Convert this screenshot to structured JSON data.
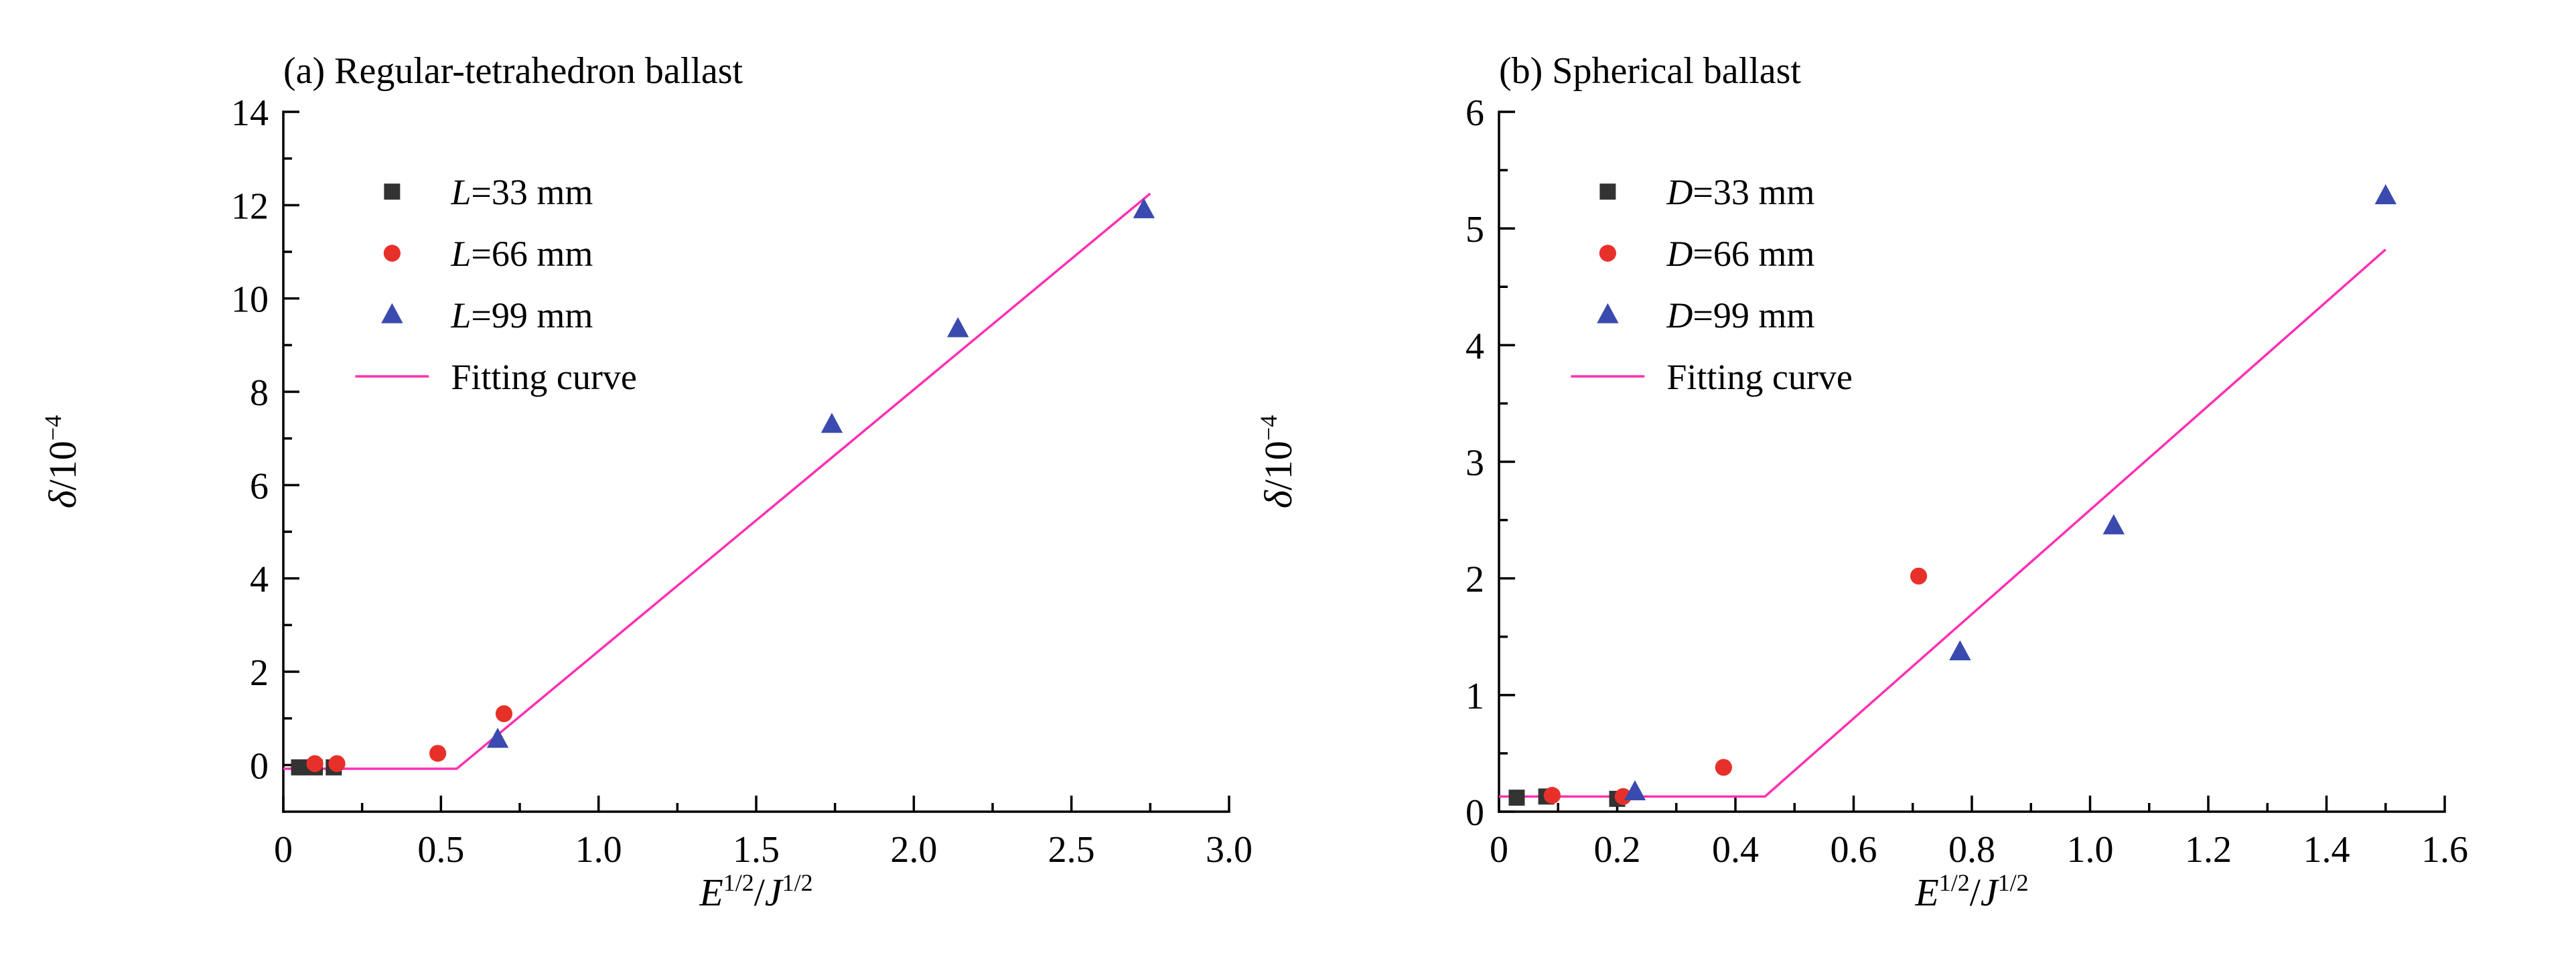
{
  "page": {
    "background": "#ffffff",
    "axis_color": "#000000",
    "text_color": "#000000"
  },
  "chart_data": [
    {
      "type": "scatter",
      "title": "(a) Regular-tetrahedron ballast",
      "xlabel": "E^1/2/J^1/2",
      "ylabel": "δ/10^−4",
      "xlabel_segments": [
        {
          "text": "E",
          "style": "italic"
        },
        {
          "text": "1/2",
          "style": "sup"
        },
        {
          "text": "/",
          "style": "normal"
        },
        {
          "text": "J",
          "style": "italic"
        },
        {
          "text": "1/2",
          "style": "sup"
        }
      ],
      "ylabel_segments": [
        {
          "text": "δ",
          "style": "italic"
        },
        {
          "text": "/10",
          "style": "normal"
        },
        {
          "text": "−4",
          "style": "sup"
        }
      ],
      "xlim": [
        0,
        3.0
      ],
      "ylim": [
        -1,
        14
      ],
      "xtick_labels": [
        "0",
        "0.5",
        "1.0",
        "1.5",
        "2.0",
        "2.5",
        "3.0"
      ],
      "ytick_labels": [
        "0",
        "2",
        "4",
        "6",
        "8",
        "10",
        "12",
        "14"
      ],
      "grid": false,
      "legend_position": "upper-left",
      "series": [
        {
          "name": "L=33 mm",
          "label_segments": [
            {
              "text": "L",
              "style": "italic"
            },
            {
              "text": "=33 mm",
              "style": "normal"
            }
          ],
          "marker": "square",
          "color": "#333333",
          "points": [
            [
              0.05,
              -0.05
            ],
            [
              0.1,
              -0.05
            ],
            [
              0.16,
              -0.05
            ]
          ]
        },
        {
          "name": "L=66 mm",
          "label_segments": [
            {
              "text": "L",
              "style": "italic"
            },
            {
              "text": "=66 mm",
              "style": "normal"
            }
          ],
          "marker": "circle",
          "color": "#e8302a",
          "points": [
            [
              0.1,
              0.03
            ],
            [
              0.17,
              0.03
            ],
            [
              0.49,
              0.25
            ],
            [
              0.7,
              1.1
            ]
          ]
        },
        {
          "name": "L=99 mm",
          "label_segments": [
            {
              "text": "L",
              "style": "italic"
            },
            {
              "text": "=99 mm",
              "style": "normal"
            }
          ],
          "marker": "triangle",
          "color": "#3a4aae",
          "points": [
            [
              0.68,
              0.55
            ],
            [
              1.74,
              7.3
            ],
            [
              2.14,
              9.35
            ],
            [
              2.73,
              11.9
            ]
          ]
        }
      ],
      "fit_curve": {
        "name": "Fitting curve",
        "label_segments": [
          {
            "text": "Fitting curve",
            "style": "normal"
          }
        ],
        "color": "#ff2fb4",
        "points": [
          [
            0,
            -0.08
          ],
          [
            0.55,
            -0.08
          ],
          [
            2.75,
            12.25
          ]
        ]
      }
    },
    {
      "type": "scatter",
      "title": "(b) Spherical ballast",
      "xlabel": "E^1/2/J^1/2",
      "ylabel": "δ/10^−4",
      "xlabel_segments": [
        {
          "text": "E",
          "style": "italic"
        },
        {
          "text": "1/2",
          "style": "sup"
        },
        {
          "text": "/",
          "style": "normal"
        },
        {
          "text": "J",
          "style": "italic"
        },
        {
          "text": "1/2",
          "style": "sup"
        }
      ],
      "ylabel_segments": [
        {
          "text": "δ",
          "style": "italic"
        },
        {
          "text": "/10",
          "style": "normal"
        },
        {
          "text": "−4",
          "style": "sup"
        }
      ],
      "xlim": [
        0,
        1.6
      ],
      "ylim": [
        0,
        6
      ],
      "xtick_labels": [
        "0",
        "0.2",
        "0.4",
        "0.6",
        "0.8",
        "1.0",
        "1.2",
        "1.4",
        "1.6"
      ],
      "ytick_labels": [
        "0",
        "1",
        "2",
        "3",
        "4",
        "5",
        "6"
      ],
      "grid": false,
      "legend_position": "upper-left",
      "series": [
        {
          "name": "D=33 mm",
          "label_segments": [
            {
              "text": "D",
              "style": "italic"
            },
            {
              "text": "=33 mm",
              "style": "normal"
            }
          ],
          "marker": "square",
          "color": "#333333",
          "points": [
            [
              0.03,
              0.12
            ],
            [
              0.08,
              0.13
            ],
            [
              0.2,
              0.11
            ]
          ]
        },
        {
          "name": "D=66 mm",
          "label_segments": [
            {
              "text": "D",
              "style": "italic"
            },
            {
              "text": "=66 mm",
              "style": "normal"
            }
          ],
          "marker": "circle",
          "color": "#e8302a",
          "points": [
            [
              0.09,
              0.14
            ],
            [
              0.21,
              0.13
            ],
            [
              0.38,
              0.38
            ],
            [
              0.71,
              2.02
            ]
          ]
        },
        {
          "name": "D=99 mm",
          "label_segments": [
            {
              "text": "D",
              "style": "italic"
            },
            {
              "text": "=99 mm",
              "style": "normal"
            }
          ],
          "marker": "triangle",
          "color": "#3a4aae",
          "points": [
            [
              0.23,
              0.17
            ],
            [
              0.78,
              1.37
            ],
            [
              1.04,
              2.45
            ],
            [
              1.5,
              5.28
            ]
          ]
        }
      ],
      "fit_curve": {
        "name": "Fitting curve",
        "label_segments": [
          {
            "text": "Fitting curve",
            "style": "normal"
          }
        ],
        "color": "#ff2fb4",
        "points": [
          [
            0,
            0.13
          ],
          [
            0.45,
            0.13
          ],
          [
            1.5,
            4.82
          ]
        ]
      }
    }
  ]
}
